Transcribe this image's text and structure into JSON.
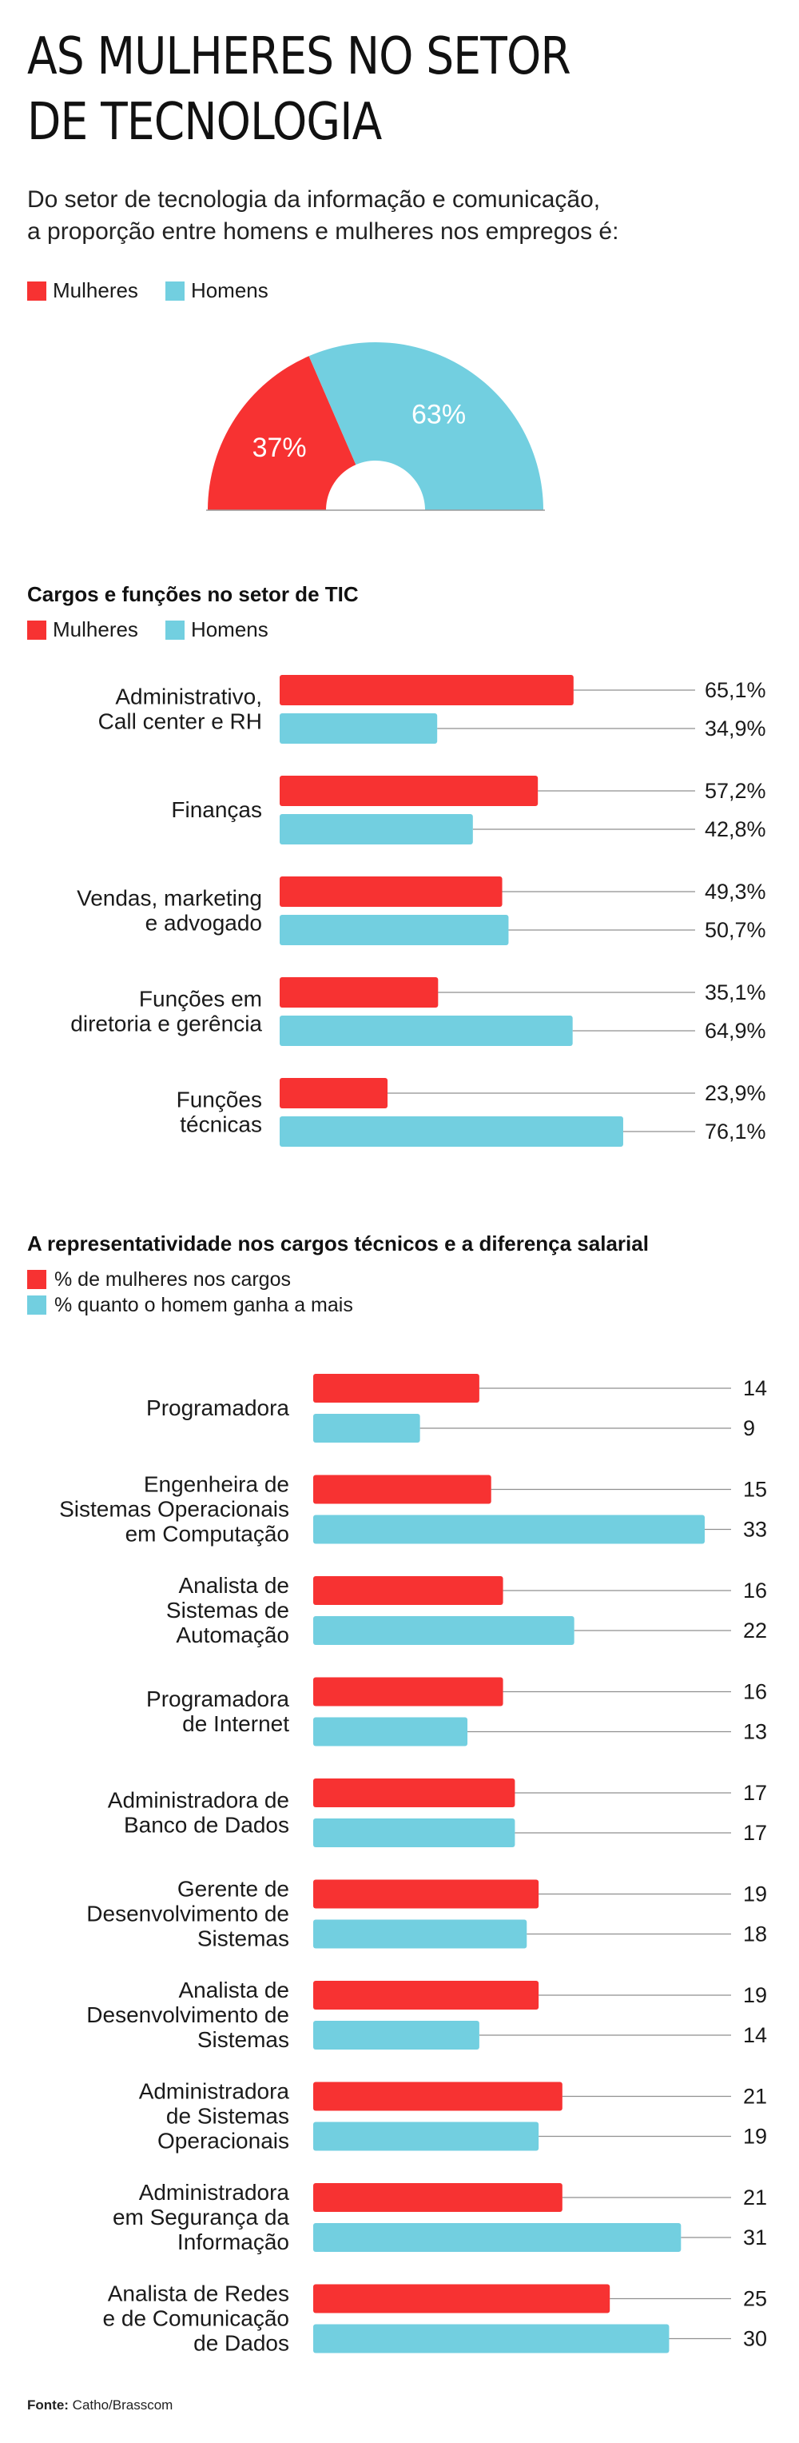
{
  "title_line1": "AS MULHERES NO SETOR",
  "title_line2": "DE TECNOLOGIA",
  "intro_line1": "Do setor de tecnologia da informação e comunicação,",
  "intro_line2": "a proporção entre homens e mulheres nos empregos é:",
  "colors": {
    "women": "#f73232",
    "men": "#72cfe0"
  },
  "legend": {
    "women": "Mulheres",
    "men": "Homens"
  },
  "section2_title": "Cargos e funções no setor de TIC",
  "section3_title": "A representatividade nos cargos técnicos e a diferença salarial",
  "legend3": {
    "women": "% de mulheres nos cargos",
    "men": "% quanto o homem ganha a mais"
  },
  "footer": {
    "label": "Fonte:",
    "text": "Catho/Brasscom"
  },
  "chart_data": [
    {
      "type": "pie",
      "categories": [
        "Mulheres",
        "Homens"
      ],
      "values": [
        37,
        63
      ],
      "labels": [
        "37%",
        "63%"
      ]
    },
    {
      "type": "bar",
      "orientation": "horizontal",
      "categories": [
        [
          "Administrativo,",
          "Call center e RH"
        ],
        [
          "Finanças"
        ],
        [
          "Vendas, marketing",
          "e advogado"
        ],
        [
          "Funções em",
          "diretoria e gerência"
        ],
        [
          "Funções",
          "técnicas"
        ]
      ],
      "series": [
        {
          "name": "Mulheres",
          "values": [
            65.1,
            57.2,
            49.3,
            35.1,
            23.9
          ],
          "labels": [
            "65,1%",
            "57,2%",
            "49,3%",
            "35,1%",
            "23,9%"
          ]
        },
        {
          "name": "Homens",
          "values": [
            34.9,
            42.8,
            50.7,
            64.9,
            76.1
          ],
          "labels": [
            "34,9%",
            "42,8%",
            "50,7%",
            "64,9%",
            "76,1%"
          ]
        }
      ],
      "xlim": [
        0,
        100
      ]
    },
    {
      "type": "bar",
      "orientation": "horizontal",
      "categories": [
        [
          "Programadora"
        ],
        [
          "Engenheira de",
          "Sistemas Operacionais",
          "em Computação"
        ],
        [
          "Analista de",
          "Sistemas de",
          "Automação"
        ],
        [
          "Programadora",
          "de Internet"
        ],
        [
          "Administradora de",
          "Banco de Dados"
        ],
        [
          "Gerente de",
          "Desenvolvimento de",
          "Sistemas"
        ],
        [
          "Analista de",
          "Desenvolvimento de",
          "Sistemas"
        ],
        [
          "Administradora",
          "de Sistemas",
          "Operacionais"
        ],
        [
          "Administradora",
          "em Segurança da",
          "Informação"
        ],
        [
          "Analista de Redes",
          "e de Comunicação",
          "de Dados"
        ]
      ],
      "series": [
        {
          "name": "% de mulheres nos cargos",
          "values": [
            14,
            15,
            16,
            16,
            17,
            19,
            19,
            21,
            21,
            25
          ]
        },
        {
          "name": "% quanto o homem ganha a mais",
          "values": [
            9,
            33,
            22,
            13,
            17,
            18,
            14,
            19,
            31,
            30
          ]
        }
      ],
      "xlim": [
        0,
        33
      ]
    }
  ]
}
